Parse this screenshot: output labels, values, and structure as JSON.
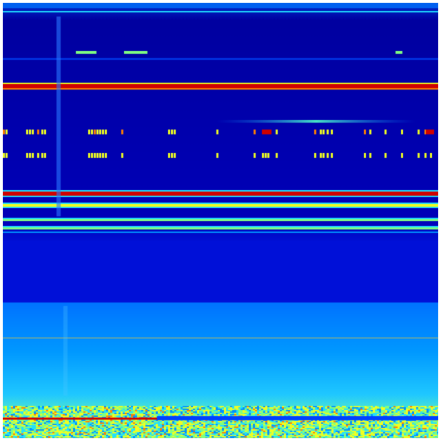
{
  "colormap": "jet",
  "colors": {
    "deep_blue": "#00009a",
    "blue": "#0000d8",
    "mid_blue": "#0040ff",
    "light_blue": "#0090ff",
    "cyan": "#20e0ff",
    "green": "#80ff80",
    "yellow": "#f0ff20",
    "orange": "#ff8000",
    "red": "#d00000"
  }
}
